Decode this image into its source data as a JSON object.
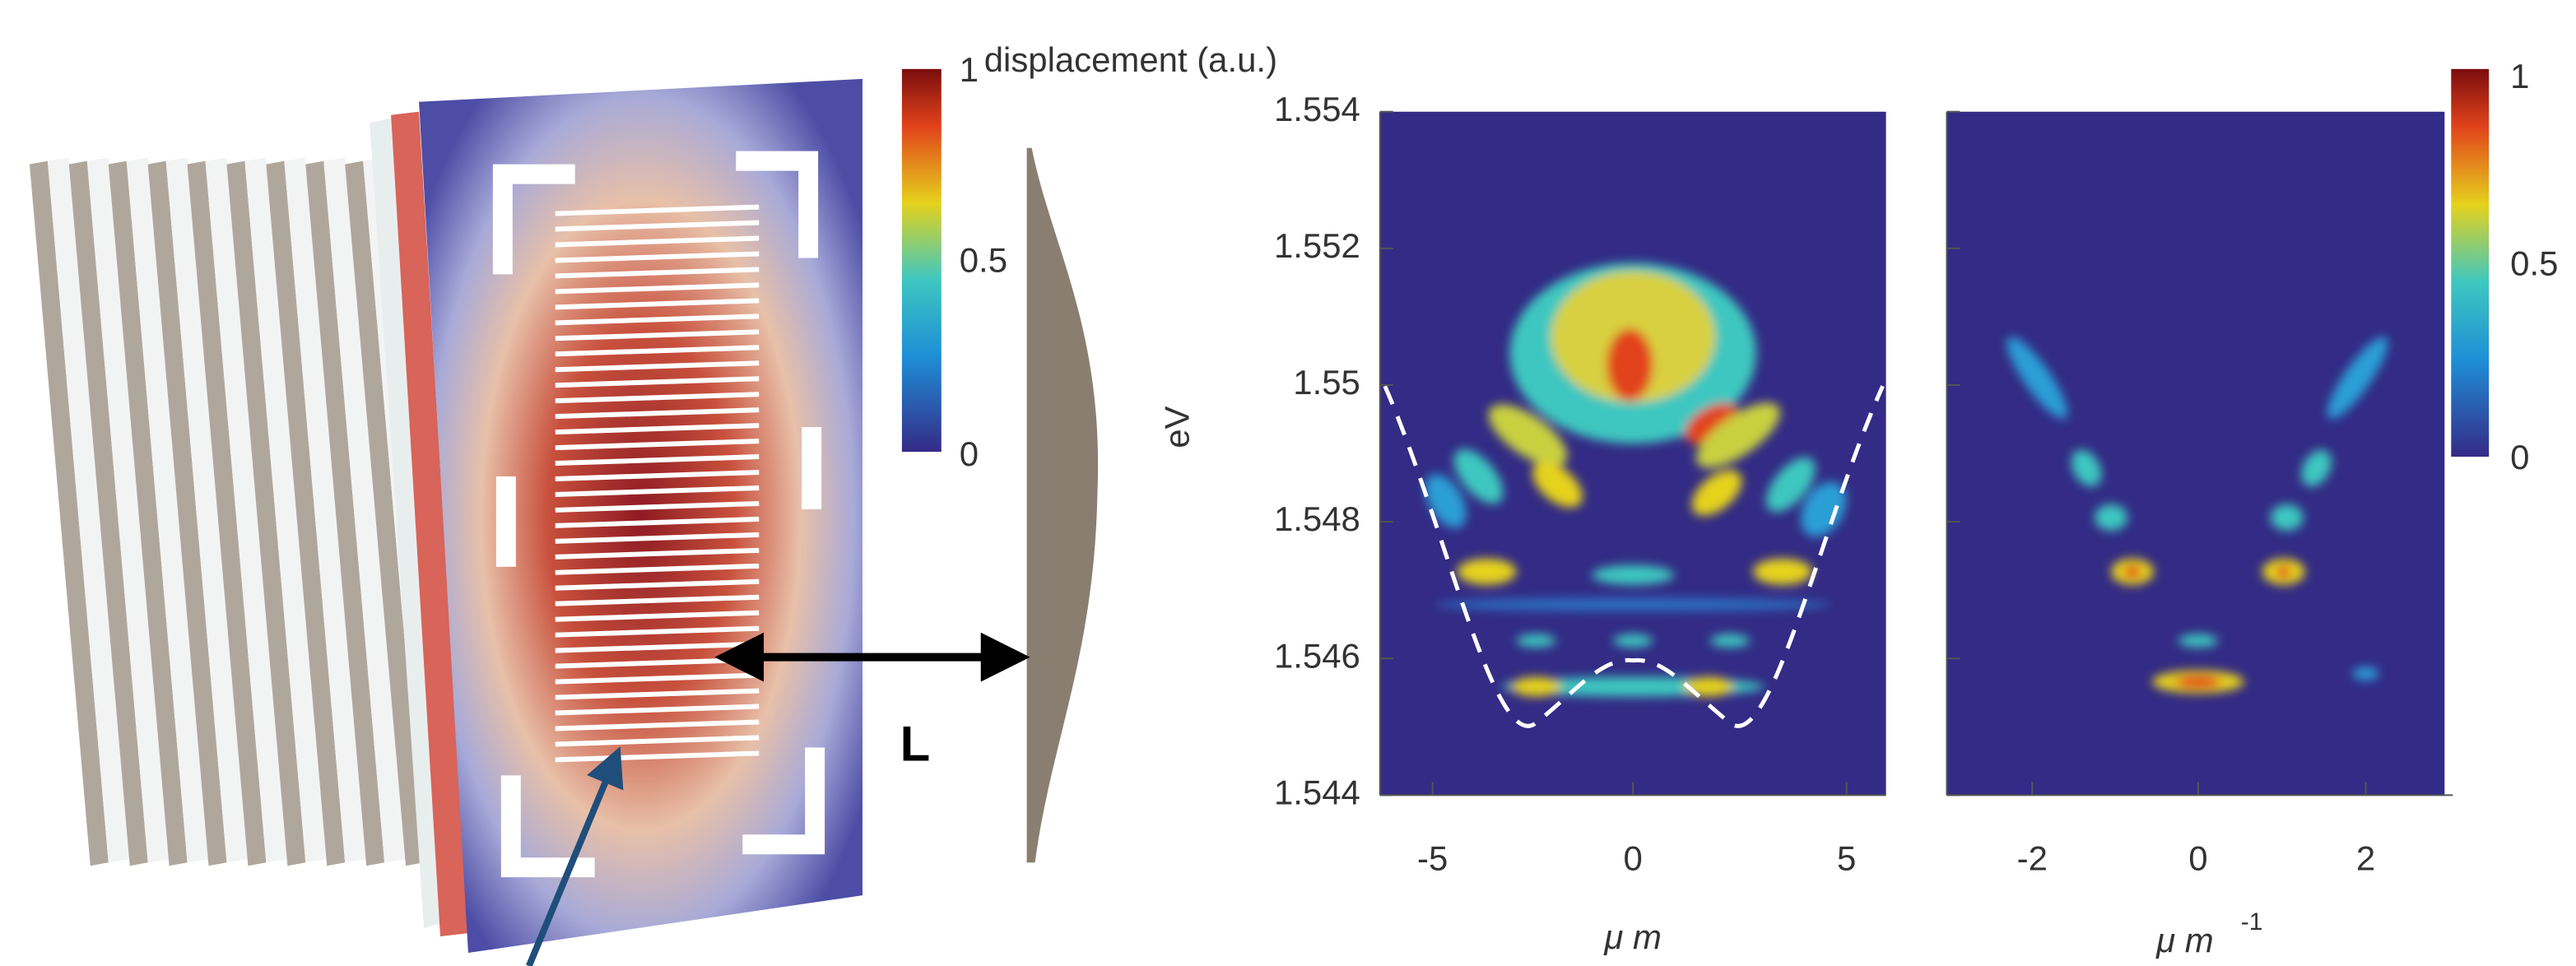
{
  "illustration": {
    "label": "L"
  },
  "colorbar_left": {
    "title": "displacement (a.u.)",
    "ticks": [
      "1",
      "0.5",
      "0"
    ]
  },
  "panel_real": {
    "ylabel": "eV",
    "yticks": [
      "1.554",
      "1.552",
      "1.55",
      "1.548",
      "1.546",
      "1.544"
    ],
    "xticks": [
      "-5",
      "0",
      "5"
    ],
    "xlabel": "μ m"
  },
  "panel_k": {
    "xticks": [
      "-2",
      "0",
      "2"
    ],
    "xlabel": "μ m",
    "xlabel_sup": "-1"
  },
  "colorbar_right": {
    "ticks": [
      "1",
      "0.5",
      "0"
    ]
  }
}
